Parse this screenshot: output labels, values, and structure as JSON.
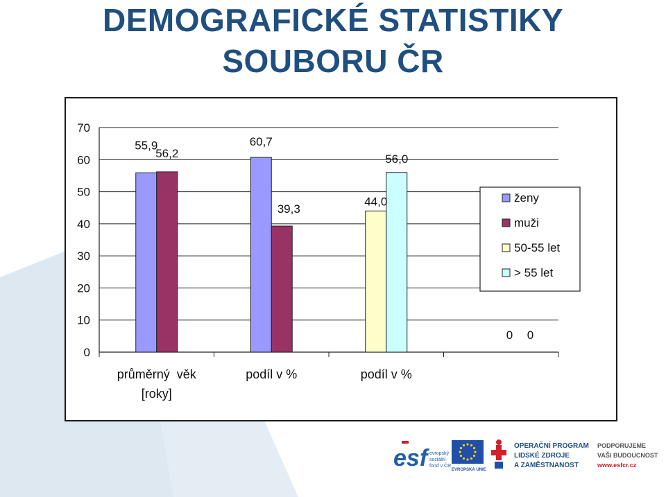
{
  "header": {
    "title_line1": "DEMOGRAFICKÉ STATISTIKY",
    "title_line2": "SOUBORU ČR"
  },
  "chart_data": {
    "type": "bar",
    "ylim": [
      0,
      70
    ],
    "yticks": [
      0,
      10,
      20,
      30,
      40,
      50,
      60,
      70
    ],
    "grid": "horizontal",
    "legend_position": "right",
    "categories": [
      "průměrný věk [roky]",
      "podíl v %",
      "podíl v %",
      ""
    ],
    "category_label_lines": [
      [
        "průměrný  věk",
        "[roky]"
      ],
      [
        "podíl v %"
      ],
      [
        "podíl v %"
      ],
      [
        ""
      ]
    ],
    "series": [
      {
        "name": "ženy",
        "color": "#9999ff",
        "values": [
          55.9,
          60.7,
          null,
          0
        ],
        "labels": [
          "55,9",
          "60,7",
          "",
          "0"
        ]
      },
      {
        "name": "muži",
        "color": "#993366",
        "values": [
          56.2,
          39.3,
          null,
          null
        ],
        "labels": [
          "56,2",
          "39,3",
          "",
          ""
        ]
      },
      {
        "name": "50-55 let",
        "color": "#ffffcc",
        "values": [
          null,
          null,
          44.0,
          null
        ],
        "labels": [
          "",
          "",
          "44,0",
          ""
        ]
      },
      {
        "name": "> 55 let",
        "color": "#ccffff",
        "values": [
          null,
          null,
          56.0,
          0
        ],
        "labels": [
          "",
          "",
          "56,0",
          "0"
        ]
      }
    ]
  },
  "footer": {
    "esf_brand": "esf",
    "esf_caption": [
      "evropský",
      "sociální",
      "fond v ČR"
    ],
    "eu_caption": "EVROPSKÁ UNIE",
    "op_text": [
      "OPERAČNÍ PROGRAM",
      "LIDSKÉ ZDROJE",
      "A ZAMĚSTNANOST"
    ],
    "support_text": [
      "PODPORUJEME",
      "VAŠI BUDOUCNOST"
    ],
    "support_url": "www.esfcr.cz",
    "colors": {
      "navy": "#1f4f7f",
      "esf_blue": "#1f5fa8",
      "eu_blue": "#1f4fa8",
      "eu_yellow": "#ffcc00",
      "red": "#d0202a",
      "bg_shape": "#dbe7f0"
    }
  }
}
